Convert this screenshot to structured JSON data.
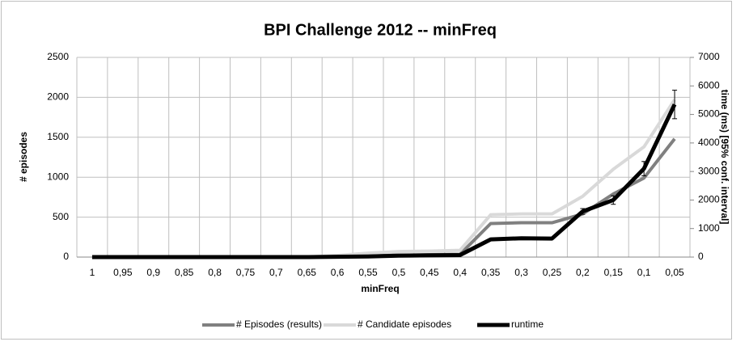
{
  "chart_data": {
    "type": "line",
    "title": "BPI Challenge 2012 -- minFreq",
    "x_label": "minFreq",
    "y_label": "# episodes",
    "y2_label": "time (ms) [95% conf. interval]",
    "categories": [
      "1",
      "0,95",
      "0,9",
      "0,85",
      "0,8",
      "0,75",
      "0,7",
      "0,65",
      "0,6",
      "0,55",
      "0,5",
      "0,45",
      "0,4",
      "0,35",
      "0,3",
      "0,25",
      "0,2",
      "0,15",
      "0,1",
      "0,05"
    ],
    "series": [
      {
        "name": "# Episodes (results)",
        "color": "#808080",
        "values": [
          0,
          0,
          0,
          0,
          0,
          0,
          0,
          0,
          5,
          15,
          25,
          30,
          35,
          420,
          430,
          430,
          540,
          790,
          990,
          1480
        ]
      },
      {
        "name": "# Candidate episodes",
        "color": "#d9d9d9",
        "values": [
          0,
          0,
          0,
          0,
          0,
          0,
          0,
          0,
          20,
          50,
          70,
          75,
          85,
          530,
          540,
          540,
          760,
          1100,
          1380,
          1970
        ]
      },
      {
        "name": "runtime",
        "color": "#000000",
        "axis": "y2",
        "values": [
          0,
          0,
          0,
          0,
          0,
          0,
          0,
          0,
          10,
          20,
          50,
          60,
          70,
          620,
          660,
          650,
          1600,
          2000,
          3100,
          5350
        ],
        "errors": [
          null,
          null,
          null,
          null,
          null,
          null,
          null,
          null,
          null,
          null,
          null,
          null,
          null,
          null,
          null,
          null,
          100,
          150,
          250,
          500
        ]
      }
    ],
    "ylim": [
      0,
      2500
    ],
    "yticks": [
      0,
      500,
      1000,
      1500,
      2000,
      2500
    ],
    "y2lim": [
      0,
      7000
    ],
    "y2ticks": [
      0,
      1000,
      2000,
      3000,
      4000,
      5000,
      6000,
      7000
    ],
    "grid": true,
    "legend": "bottom"
  }
}
